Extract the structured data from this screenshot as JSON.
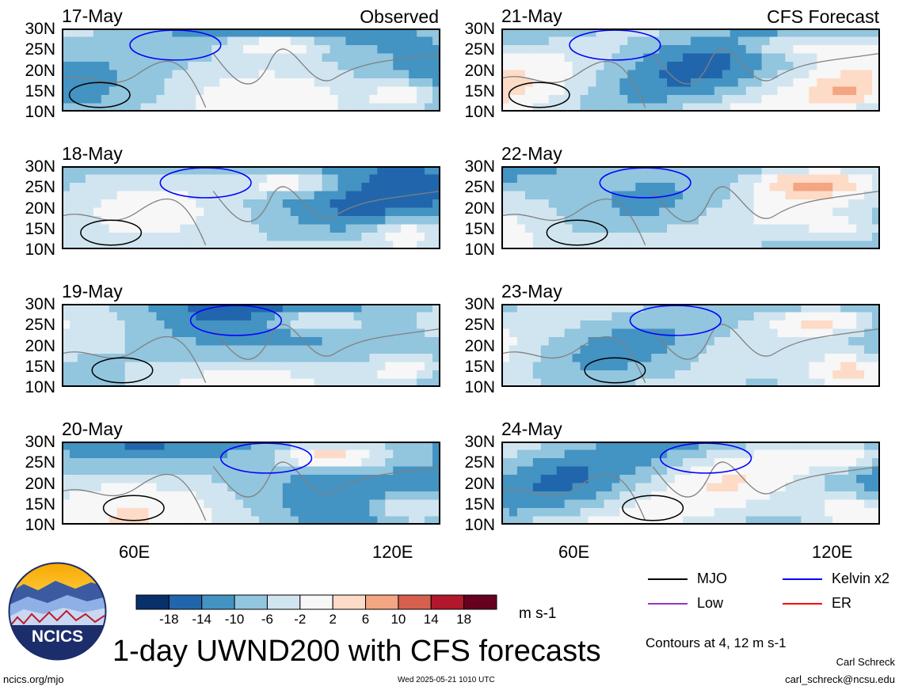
{
  "chart_data": {
    "type": "heatmap",
    "title": "1-day UWND200 with CFS forecasts",
    "variable": "200-hPa zonal wind",
    "units": "m s-1",
    "colorbar": {
      "levels": [
        "-18",
        "-14",
        "-10",
        "-6",
        "-2",
        "2",
        "6",
        "10",
        "14",
        "18"
      ],
      "colors": [
        "#08306b",
        "#2166ac",
        "#4393c3",
        "#92c5de",
        "#d1e5f0",
        "#f7f7f7",
        "#fddbc7",
        "#f4a582",
        "#d6604d",
        "#b2182b",
        "#67001f"
      ]
    },
    "lat_labels": [
      "30N",
      "25N",
      "20N",
      "15N",
      "10N"
    ],
    "lon_labels": [
      "60E",
      "120E"
    ],
    "lat_range": [
      10,
      30
    ],
    "lon_range": [
      40,
      130
    ],
    "columns": [
      {
        "tag": "Observed",
        "panels": [
          "17-May",
          "18-May",
          "19-May",
          "20-May"
        ]
      },
      {
        "tag": "CFS Forecast",
        "panels": [
          "21-May",
          "22-May",
          "23-May",
          "24-May"
        ]
      }
    ],
    "contour_note": "Contours at 4, 12 m s-1",
    "legend": [
      {
        "label": "MJO",
        "color": "#000000"
      },
      {
        "label": "Kelvin x2",
        "color": "#0000ff"
      },
      {
        "label": "Low",
        "color": "#9933cc"
      },
      {
        "label": "ER",
        "color": "#ff0000"
      }
    ]
  },
  "logo": {
    "text": "NCICS"
  },
  "footer": {
    "url": "ncics.org/mjo",
    "timestamp": "Wed 2025-05-21 1010 UTC",
    "author": "Carl Schreck",
    "email": "carl_schreck@ncsu.edu"
  }
}
